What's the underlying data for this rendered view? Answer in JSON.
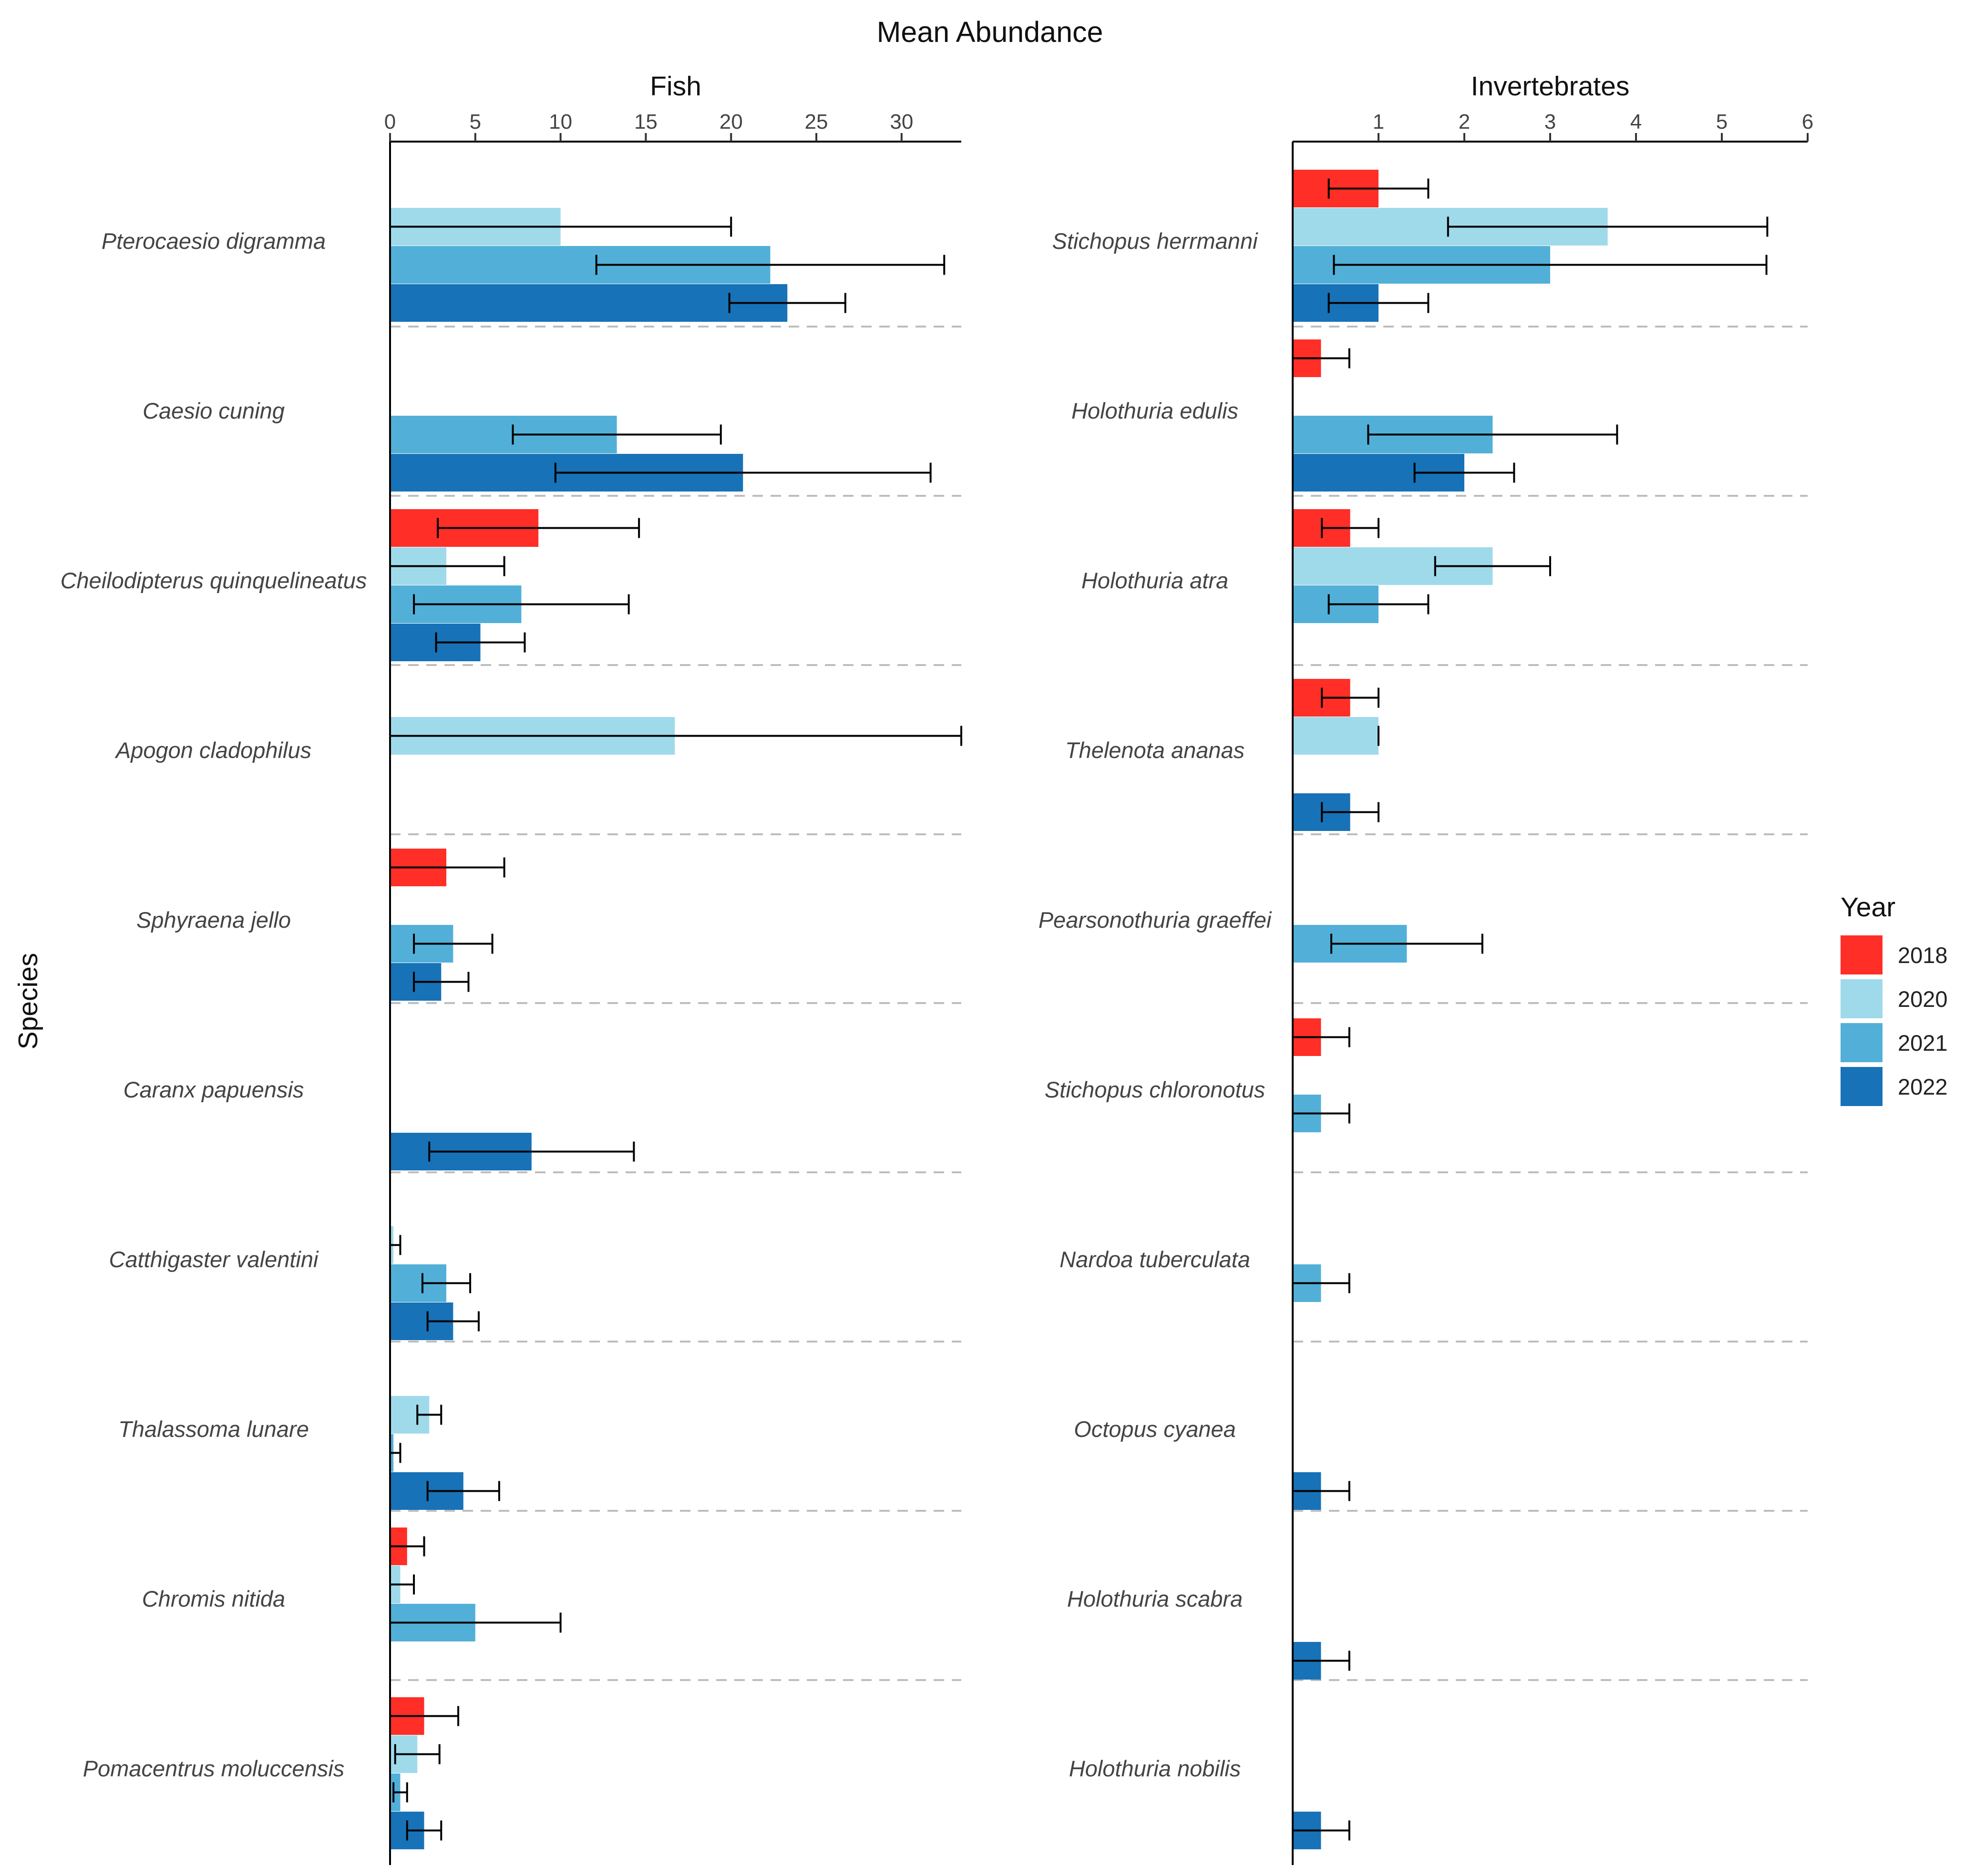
{
  "chart_data": {
    "type": "bar",
    "orientation": "horizontal",
    "title": "Mean Abundance",
    "ylabel": "Species",
    "legend": {
      "title": "Year",
      "position": "right",
      "entries": [
        {
          "label": "2018",
          "color": "#ff2e26"
        },
        {
          "label": "2020",
          "color": "#9fdaeb"
        },
        {
          "label": "2021",
          "color": "#52b0d8"
        },
        {
          "label": "2022",
          "color": "#1872b7"
        }
      ]
    },
    "panels": [
      {
        "title": "Fish",
        "xlim": [
          0,
          33.5
        ],
        "ticks": [
          0,
          5,
          10,
          15,
          20,
          25,
          30
        ],
        "tick_labels": [
          "0",
          "5",
          "10",
          "15",
          "20",
          "25",
          "30"
        ],
        "categories": [
          "Pterocaesio digramma",
          "Caesio cuning",
          "Cheilodipterus quinquelineatus",
          "Apogon cladophilus",
          "Sphyraena jello",
          "Caranx papuensis",
          "Catthigaster valentini",
          "Thalassoma lunare",
          "Chromis nitida",
          "Pomacentrus moluccensis"
        ],
        "series": [
          {
            "name": "2018",
            "values": [
              null,
              null,
              8.7,
              null,
              3.3,
              null,
              null,
              null,
              1.0,
              2.0
            ],
            "errors": [
              null,
              null,
              5.9,
              null,
              3.4,
              null,
              null,
              null,
              1.0,
              2.0
            ]
          },
          {
            "name": "2020",
            "values": [
              10.0,
              null,
              3.3,
              16.7,
              null,
              null,
              0.2,
              2.3,
              0.6,
              1.6
            ],
            "errors": [
              10.0,
              null,
              3.4,
              16.8,
              null,
              null,
              0.4,
              0.7,
              0.8,
              1.3
            ]
          },
          {
            "name": "2021",
            "values": [
              22.3,
              13.3,
              7.7,
              null,
              3.7,
              null,
              3.3,
              0.2,
              5.0,
              0.6
            ],
            "errors": [
              10.2,
              6.1,
              6.3,
              null,
              2.3,
              null,
              1.4,
              0.4,
              5.0,
              0.4
            ]
          },
          {
            "name": "2022",
            "values": [
              23.3,
              20.7,
              5.3,
              null,
              3.0,
              8.3,
              3.7,
              4.3,
              null,
              2.0
            ],
            "errors": [
              3.4,
              11.0,
              2.6,
              null,
              1.6,
              6.0,
              1.5,
              2.1,
              null,
              1.0
            ]
          }
        ]
      },
      {
        "title": "Invertebrates",
        "xlim": [
          0,
          6
        ],
        "ticks": [
          1,
          2,
          3,
          4,
          5,
          6
        ],
        "tick_labels": [
          "1",
          "2",
          "3",
          "4",
          "5",
          "6"
        ],
        "categories": [
          "Stichopus herrmanni",
          "Holothuria edulis",
          "Holothuria atra",
          "Thelenota ananas",
          "Pearsonothuria graeffei",
          "Stichopus chloronotus",
          "Nardoa tuberculata",
          "Octopus cyanea",
          "Holothuria scabra",
          "Holothuria nobilis"
        ],
        "series": [
          {
            "name": "2018",
            "values": [
              1.0,
              0.33,
              0.67,
              0.67,
              null,
              0.33,
              null,
              null,
              null,
              null
            ],
            "errors": [
              0.58,
              0.33,
              0.33,
              0.33,
              null,
              0.33,
              null,
              null,
              null,
              null
            ]
          },
          {
            "name": "2020",
            "values": [
              3.67,
              null,
              2.33,
              1.0,
              null,
              null,
              null,
              null,
              null,
              null
            ],
            "errors": [
              1.86,
              null,
              0.67,
              0.0,
              null,
              null,
              null,
              null,
              null,
              null
            ]
          },
          {
            "name": "2021",
            "values": [
              3.0,
              2.33,
              1.0,
              null,
              1.33,
              0.33,
              0.33,
              null,
              null,
              null
            ],
            "errors": [
              2.52,
              1.45,
              0.58,
              null,
              0.88,
              0.33,
              0.33,
              null,
              null,
              null
            ]
          },
          {
            "name": "2022",
            "values": [
              1.0,
              2.0,
              null,
              0.67,
              null,
              null,
              null,
              0.33,
              0.33,
              0.33
            ],
            "errors": [
              0.58,
              0.58,
              null,
              0.33,
              null,
              null,
              null,
              0.33,
              0.33,
              0.33
            ]
          }
        ]
      }
    ]
  }
}
